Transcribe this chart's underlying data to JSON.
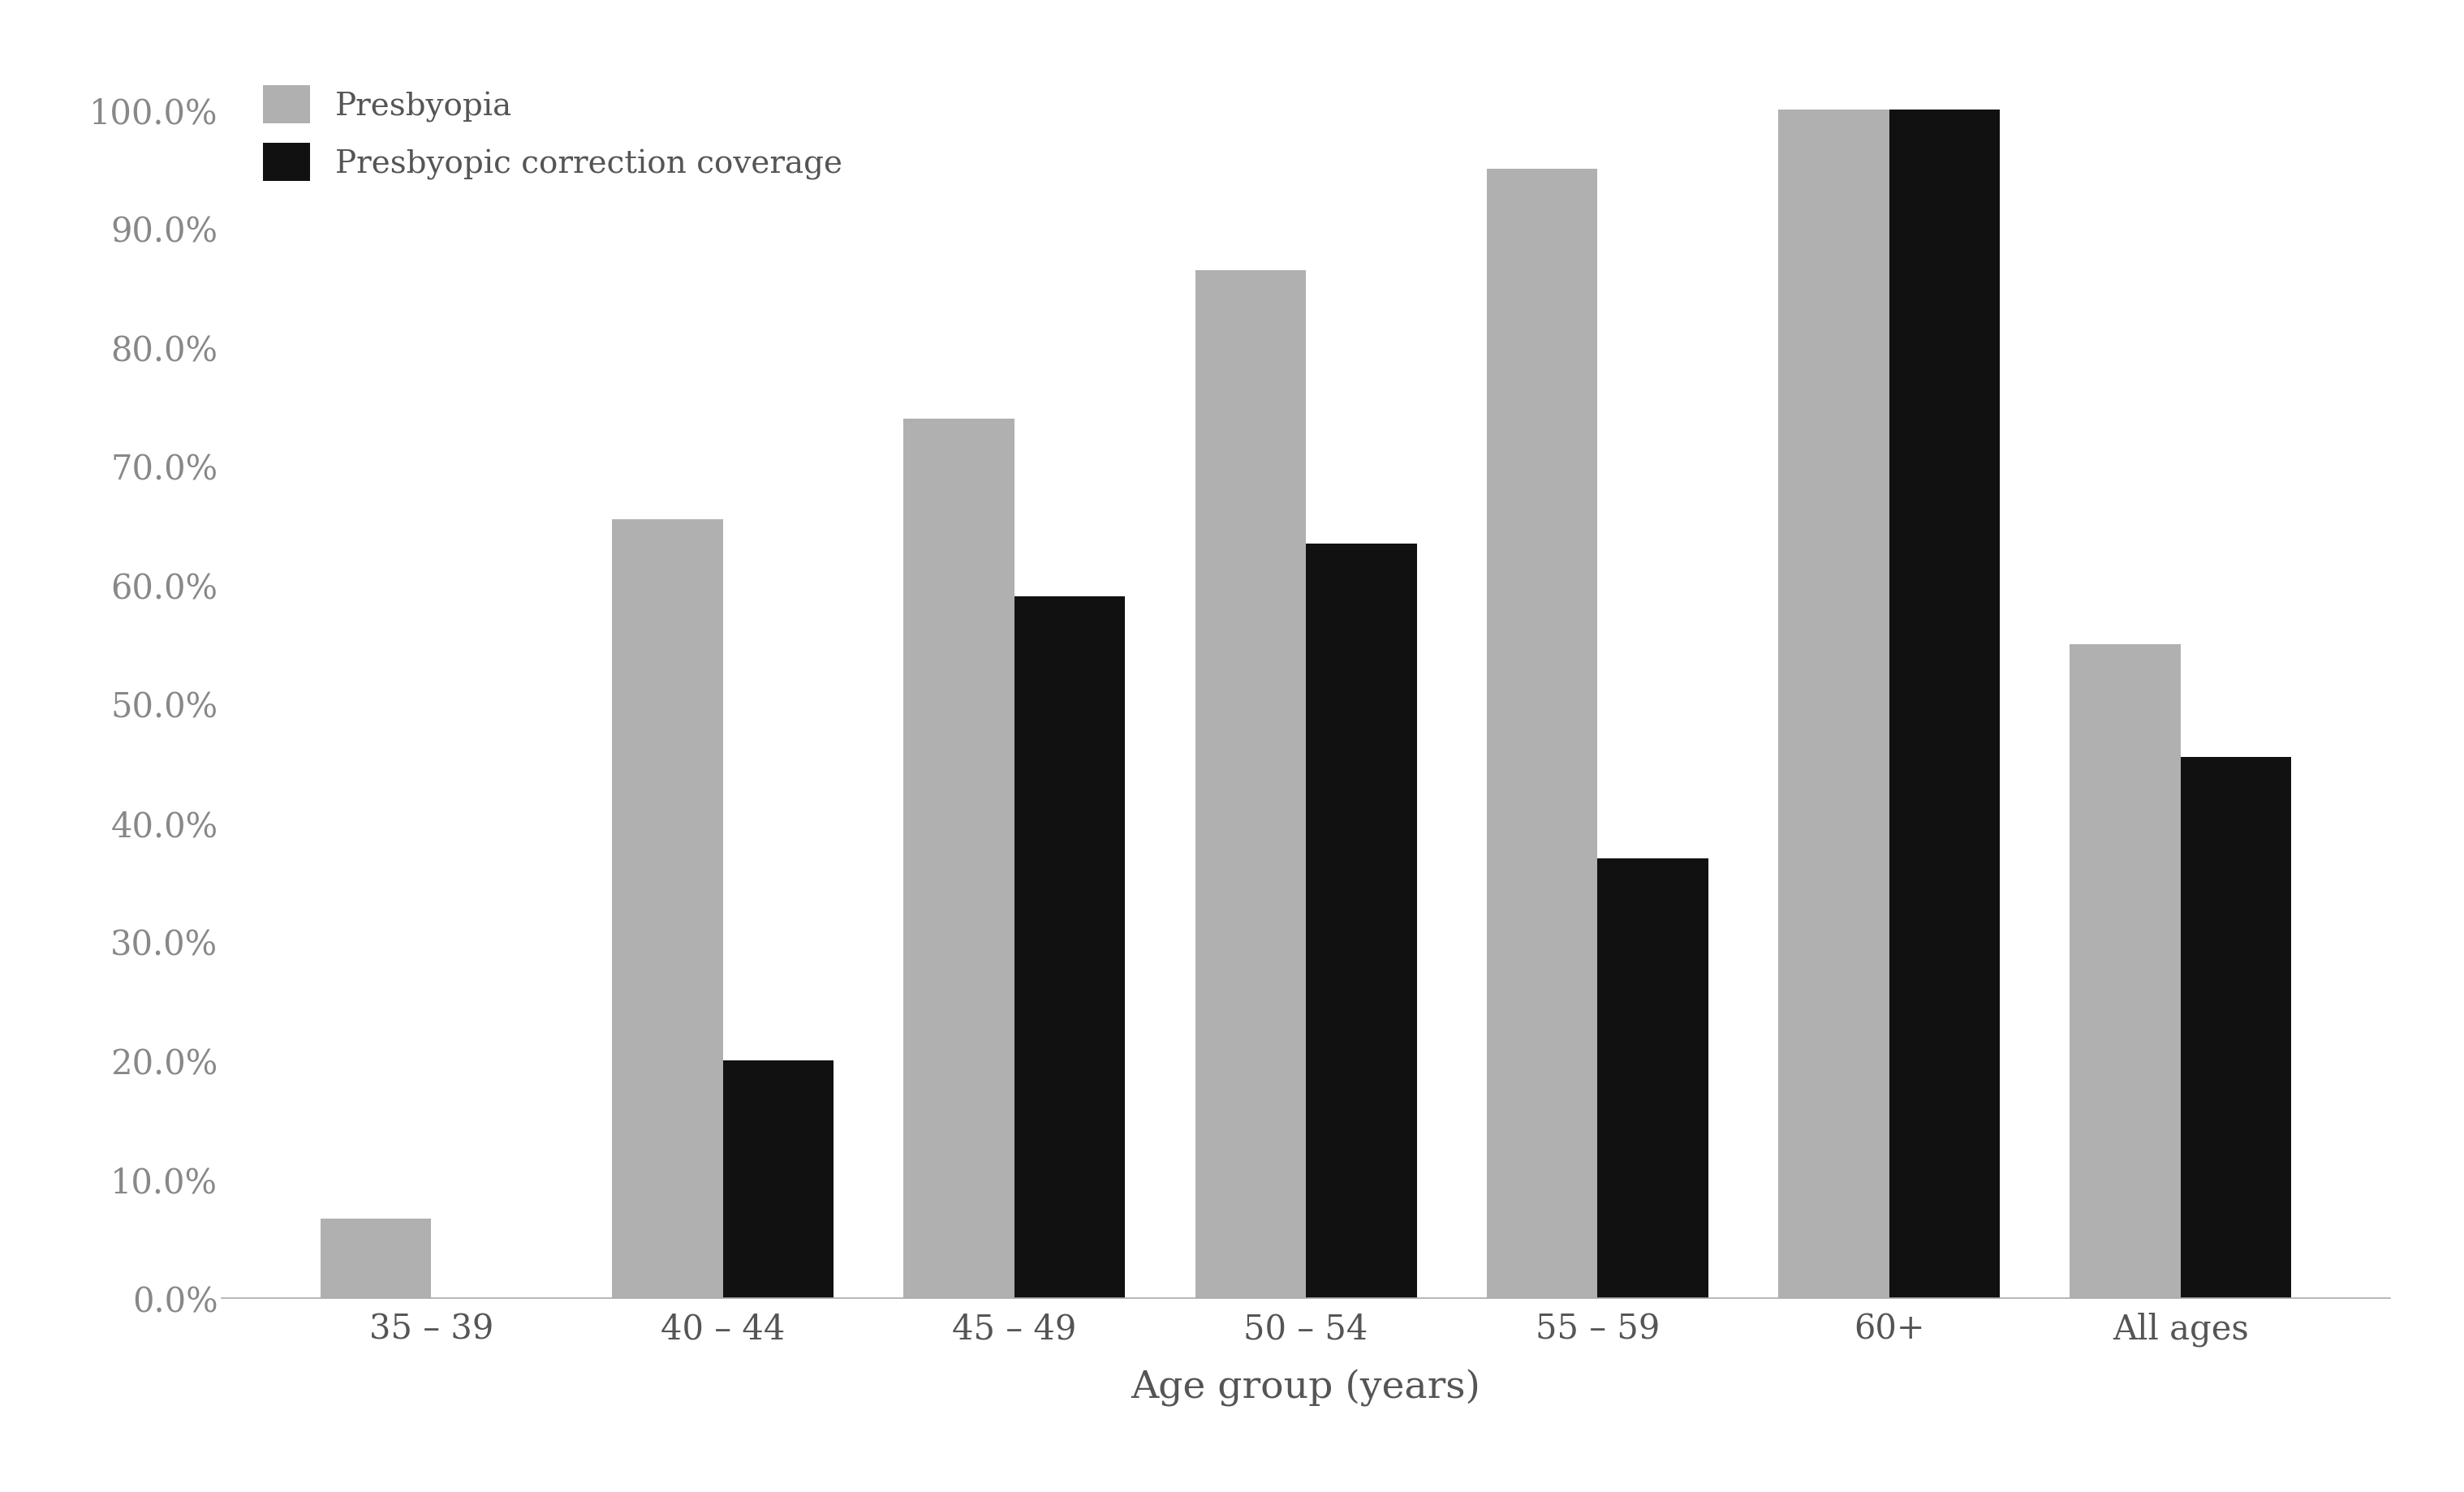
{
  "categories": [
    "35 – 39",
    "40 – 44",
    "45 – 49",
    "50 – 54",
    "55 – 59",
    "60+",
    "All ages"
  ],
  "presbyopia": [
    0.067,
    0.655,
    0.74,
    0.865,
    0.95,
    1.0,
    0.55
  ],
  "correction": [
    0.0,
    0.2,
    0.59,
    0.635,
    0.37,
    1.0,
    0.455
  ],
  "presbyopia_color": "#b0b0b0",
  "correction_color": "#111111",
  "legend_labels": [
    "Presbyopia",
    "Presbyopic correction coverage"
  ],
  "xlabel": "Age group (years)",
  "ylim": [
    0,
    1.055
  ],
  "yticks": [
    0.0,
    0.1,
    0.2,
    0.3,
    0.4,
    0.5,
    0.6,
    0.7,
    0.8,
    0.9,
    1.0
  ],
  "bar_width": 0.38,
  "background_color": "#ffffff",
  "axis_label_fontsize": 34,
  "tick_fontsize": 30,
  "legend_fontsize": 28,
  "ytick_color": "#888888",
  "xtick_color": "#555555",
  "xlabel_color": "#555555"
}
